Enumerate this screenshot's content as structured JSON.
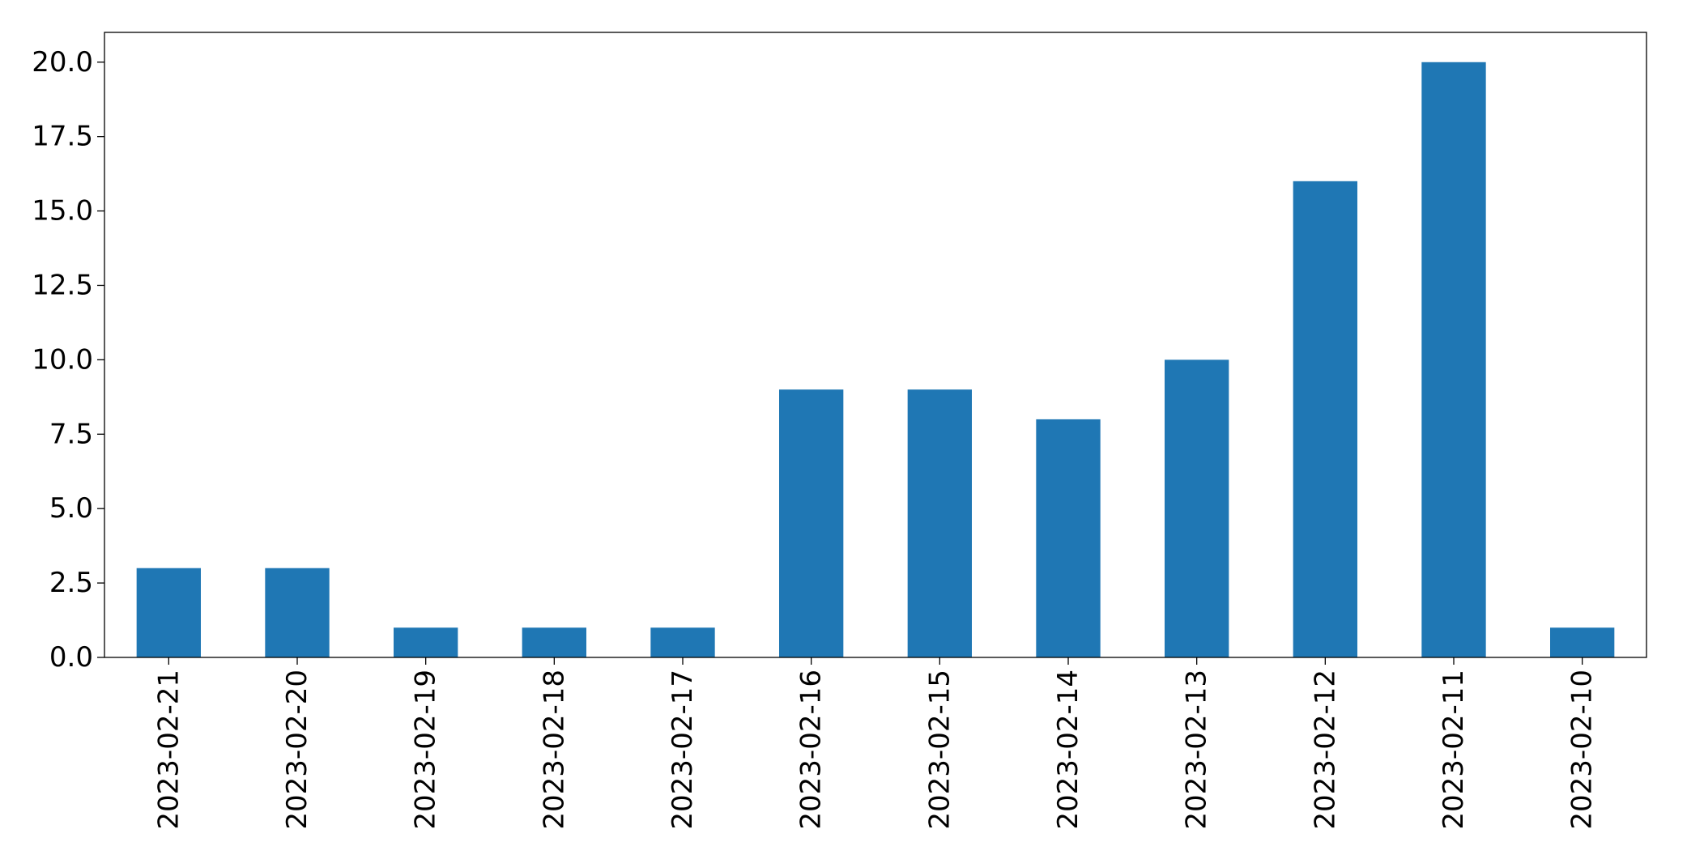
{
  "chart_data": {
    "type": "bar",
    "categories": [
      "2023-02-21",
      "2023-02-20",
      "2023-02-19",
      "2023-02-18",
      "2023-02-17",
      "2023-02-16",
      "2023-02-15",
      "2023-02-14",
      "2023-02-13",
      "2023-02-12",
      "2023-02-11",
      "2023-02-10"
    ],
    "values": [
      3,
      3,
      1,
      1,
      1,
      9,
      9,
      8,
      10,
      16,
      20,
      1
    ],
    "ylim": [
      0,
      21
    ],
    "yticks": [
      "0.0",
      "2.5",
      "5.0",
      "7.5",
      "10.0",
      "12.5",
      "15.0",
      "17.5",
      "20.0"
    ],
    "ytick_values": [
      0,
      2.5,
      5,
      7.5,
      10,
      12.5,
      15,
      17.5,
      20
    ],
    "grid": false,
    "legend": "none",
    "colors": {
      "bar": "#1f77b4",
      "axis": "#000000",
      "background": "#ffffff"
    }
  }
}
